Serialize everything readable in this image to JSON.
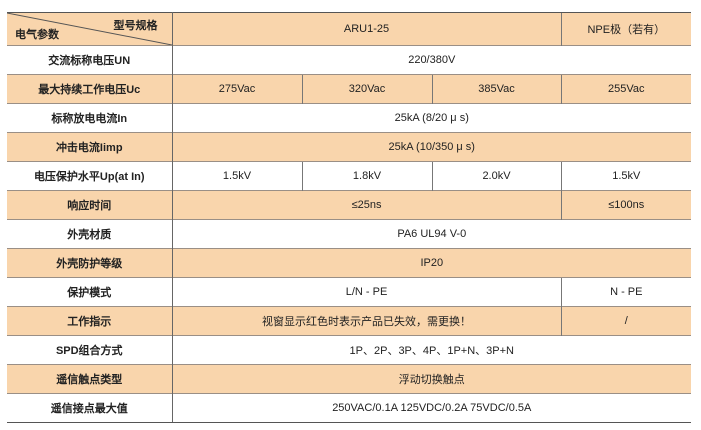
{
  "header": {
    "corner_top": "型号规格",
    "corner_bottom": "电气参数",
    "model": "ARU1-25",
    "npe": "NPE极（若有）"
  },
  "colors": {
    "shade": "#f9d5ac",
    "plain": "#ffffff"
  },
  "rows": [
    {
      "label": "交流标称电压UN",
      "shade": false,
      "cells": [
        {
          "text": "220/380V",
          "span": 4
        }
      ]
    },
    {
      "label": "最大持续工作电压Uc",
      "shade": true,
      "cells": [
        {
          "text": "275Vac",
          "span": 1
        },
        {
          "text": "320Vac",
          "span": 1
        },
        {
          "text": "385Vac",
          "span": 1
        },
        {
          "text": "255Vac",
          "span": 1
        }
      ]
    },
    {
      "label": "标称放电电流In",
      "shade": false,
      "cells": [
        {
          "text": "25kA  (8/20 μ s)",
          "span": 4
        }
      ]
    },
    {
      "label": "冲击电流Iimp",
      "shade": true,
      "cells": [
        {
          "text": "25kA  (10/350 μ s)",
          "span": 4
        }
      ]
    },
    {
      "label": "电压保护水平Up(at In)",
      "shade": false,
      "cells": [
        {
          "text": "1.5kV",
          "span": 1
        },
        {
          "text": "1.8kV",
          "span": 1
        },
        {
          "text": "2.0kV",
          "span": 1
        },
        {
          "text": "1.5kV",
          "span": 1
        }
      ]
    },
    {
      "label": "响应时间",
      "shade": true,
      "cells": [
        {
          "text": "≤25ns",
          "span": 3
        },
        {
          "text": "≤100ns",
          "span": 1
        }
      ]
    },
    {
      "label": "外壳材质",
      "shade": false,
      "cells": [
        {
          "text": "PA6  UL94 V-0",
          "span": 4
        }
      ]
    },
    {
      "label": "外壳防护等级",
      "shade": true,
      "cells": [
        {
          "text": "IP20",
          "span": 4
        }
      ]
    },
    {
      "label": "保护模式",
      "shade": false,
      "cells": [
        {
          "text": "L/N - PE",
          "span": 3
        },
        {
          "text": "N - PE",
          "span": 1
        }
      ]
    },
    {
      "label": "工作指示",
      "shade": true,
      "cells": [
        {
          "text": "视窗显示红色时表示产品已失效，需更换！",
          "span": 3
        },
        {
          "text": "/",
          "span": 1
        }
      ]
    },
    {
      "label": "SPD组合方式",
      "shade": false,
      "cells": [
        {
          "text": "1P、2P、3P、4P、1P+N、3P+N",
          "span": 4
        }
      ]
    },
    {
      "label": "遥信触点类型",
      "shade": true,
      "cells": [
        {
          "text": "浮动切换触点",
          "span": 4
        }
      ]
    },
    {
      "label": "遥信接点最大值",
      "shade": false,
      "cells": [
        {
          "text": "250VAC/0.1A   125VDC/0.2A    75VDC/0.5A",
          "span": 4
        }
      ]
    }
  ]
}
